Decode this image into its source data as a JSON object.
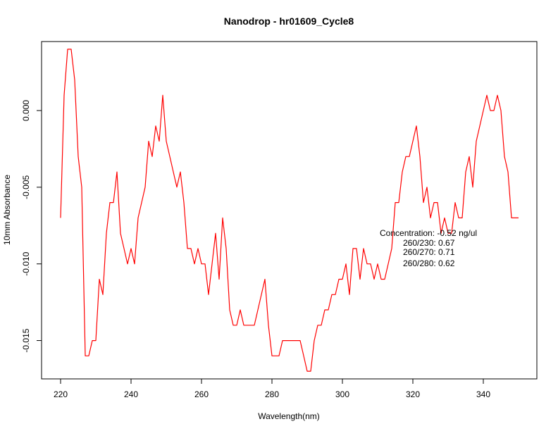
{
  "chart_data": {
    "type": "line",
    "title": "Nanodrop - hr01609_Cycle8",
    "xlabel": "Wavelength(nm)",
    "ylabel": "10mm Absorbance",
    "xlim": [
      220,
      350
    ],
    "ylim": [
      -0.0175,
      0.0045
    ],
    "x_ticks": [
      220,
      240,
      260,
      280,
      300,
      320,
      340
    ],
    "x_tick_labels": [
      "220",
      "240",
      "260",
      "280",
      "300",
      "320",
      "340"
    ],
    "y_ticks": [
      0.0,
      -0.005,
      -0.01,
      -0.015
    ],
    "y_tick_labels": [
      "0.000",
      "-0.005",
      "-0.010",
      "-0.015"
    ],
    "grid": false,
    "series": [
      {
        "color": "#ff0000",
        "x": [
          220,
          221,
          222,
          223,
          224,
          225,
          226,
          227,
          228,
          229,
          230,
          231,
          232,
          233,
          234,
          235,
          236,
          237,
          238,
          239,
          240,
          241,
          242,
          243,
          244,
          245,
          246,
          247,
          248,
          249,
          250,
          251,
          252,
          253,
          254,
          255,
          256,
          257,
          258,
          259,
          260,
          261,
          262,
          263,
          264,
          265,
          266,
          267,
          268,
          269,
          270,
          271,
          272,
          273,
          274,
          275,
          276,
          277,
          278,
          279,
          280,
          281,
          282,
          283,
          284,
          285,
          286,
          287,
          288,
          289,
          290,
          291,
          292,
          293,
          294,
          295,
          296,
          297,
          298,
          299,
          300,
          301,
          302,
          303,
          304,
          305,
          306,
          307,
          308,
          309,
          310,
          311,
          312,
          313,
          314,
          315,
          316,
          317,
          318,
          319,
          320,
          321,
          322,
          323,
          324,
          325,
          326,
          327,
          328,
          329,
          330,
          331,
          332,
          333,
          334,
          335,
          336,
          337,
          338,
          339,
          340,
          341,
          342,
          343,
          344,
          345,
          346,
          347,
          348,
          349,
          350
        ],
        "y": [
          -0.007,
          0.001,
          0.004,
          0.004,
          0.002,
          -0.003,
          -0.005,
          -0.016,
          -0.016,
          -0.015,
          -0.015,
          -0.011,
          -0.012,
          -0.008,
          -0.006,
          -0.006,
          -0.004,
          -0.008,
          -0.009,
          -0.01,
          -0.009,
          -0.01,
          -0.007,
          -0.006,
          -0.005,
          -0.002,
          -0.003,
          -0.001,
          -0.002,
          0.001,
          -0.002,
          -0.003,
          -0.004,
          -0.005,
          -0.004,
          -0.006,
          -0.009,
          -0.009,
          -0.01,
          -0.009,
          -0.01,
          -0.01,
          -0.012,
          -0.01,
          -0.008,
          -0.011,
          -0.007,
          -0.009,
          -0.013,
          -0.014,
          -0.014,
          -0.013,
          -0.014,
          -0.014,
          -0.014,
          -0.014,
          -0.013,
          -0.012,
          -0.011,
          -0.014,
          -0.016,
          -0.016,
          -0.016,
          -0.015,
          -0.015,
          -0.015,
          -0.015,
          -0.015,
          -0.015,
          -0.016,
          -0.017,
          -0.017,
          -0.015,
          -0.014,
          -0.014,
          -0.013,
          -0.013,
          -0.012,
          -0.012,
          -0.011,
          -0.011,
          -0.01,
          -0.012,
          -0.009,
          -0.009,
          -0.011,
          -0.009,
          -0.01,
          -0.01,
          -0.011,
          -0.01,
          -0.011,
          -0.011,
          -0.01,
          -0.009,
          -0.006,
          -0.006,
          -0.004,
          -0.003,
          -0.003,
          -0.002,
          -0.001,
          -0.003,
          -0.006,
          -0.005,
          -0.007,
          -0.006,
          -0.006,
          -0.008,
          -0.007,
          -0.008,
          -0.008,
          -0.006,
          -0.007,
          -0.007,
          -0.004,
          -0.003,
          -0.005,
          -0.002,
          -0.001,
          0.0,
          0.001,
          0.0,
          0.0,
          0.001,
          0.0,
          -0.003,
          -0.004,
          -0.007,
          -0.007,
          -0.007
        ]
      }
    ],
    "annotations": [
      "Concentration: -0.52 ng/ul",
      "260/230: 0.67",
      "260/270: 0.71",
      "260/280: 0.62"
    ]
  }
}
